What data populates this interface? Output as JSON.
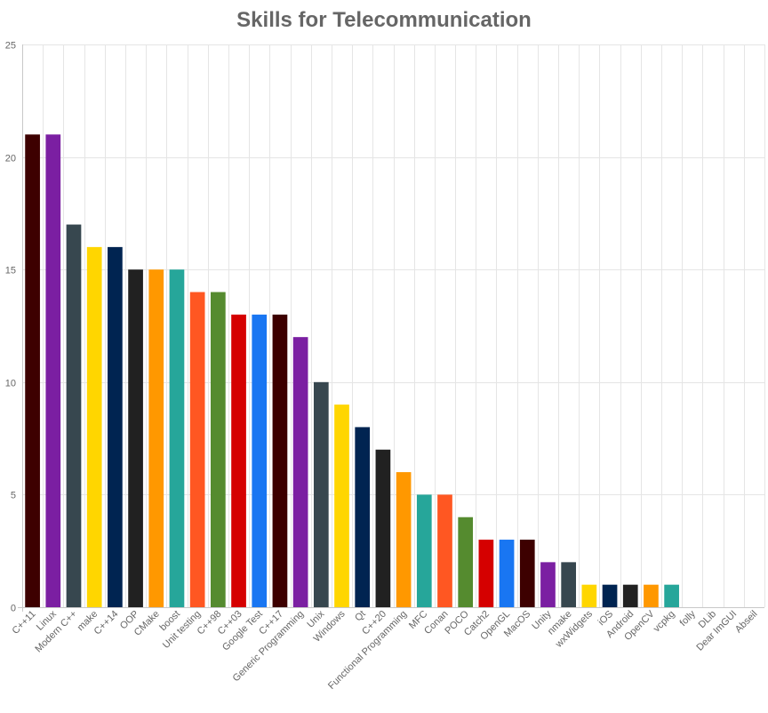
{
  "chart_data": {
    "type": "bar",
    "title": "Skills for Telecommunication",
    "xlabel": "",
    "ylabel": "",
    "ylim": [
      0,
      25
    ],
    "yticks": [
      0,
      5,
      10,
      15,
      20,
      25
    ],
    "grid": true,
    "legend": "none",
    "categories": [
      "C++11",
      "Linux",
      "Modern C++",
      "make",
      "C++14",
      "OOP",
      "CMake",
      "boost",
      "Unit testing",
      "C++98",
      "C++03",
      "Google Test",
      "C++17",
      "Generic Programming",
      "Unix",
      "Windows",
      "Qt",
      "C++20",
      "Functional Programming",
      "MFC",
      "Conan",
      "POCO",
      "Catch2",
      "OpenGL",
      "MacOS",
      "Unity",
      "nmake",
      "wxWidgets",
      "iOS",
      "Android",
      "OpenCV",
      "vcpkg",
      "folly",
      "DLib",
      "Dear ImGUI",
      "Abseil"
    ],
    "values": [
      21,
      21,
      17,
      16,
      16,
      15,
      15,
      15,
      14,
      14,
      13,
      13,
      13,
      12,
      10,
      9,
      8,
      7,
      6,
      5,
      5,
      4,
      3,
      3,
      3,
      2,
      2,
      1,
      1,
      1,
      1,
      1,
      0,
      0,
      0,
      0
    ],
    "colors": [
      "#3d0000",
      "#7b1fa2",
      "#37474f",
      "#ffd600",
      "#002451",
      "#212121",
      "#ff9800",
      "#26a69a",
      "#ff5722",
      "#558b2f",
      "#d50000",
      "#1976f2",
      "#3d0000",
      "#7b1fa2",
      "#37474f",
      "#ffd600",
      "#002451",
      "#212121",
      "#ff9800",
      "#26a69a",
      "#ff5722",
      "#558b2f",
      "#d50000",
      "#1976f2",
      "#3d0000",
      "#7b1fa2",
      "#37474f",
      "#ffd600",
      "#002451",
      "#212121",
      "#ff9800",
      "#26a69a",
      "#ff5722",
      "#558b2f",
      "#d50000",
      "#1976f2"
    ]
  }
}
